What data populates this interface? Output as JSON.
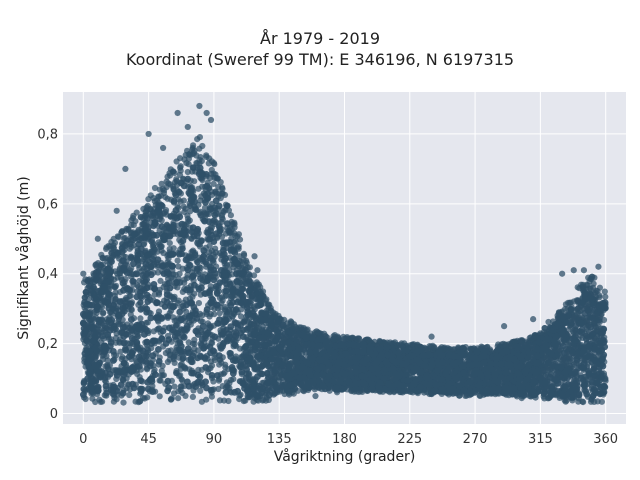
{
  "chart_data": {
    "type": "scatter",
    "title_line1": "År 1979 - 2019",
    "title_line2": "Koordinat (Sweref 99 TM): E 346196, N 6197315",
    "xlabel": "Vågriktning (grader)",
    "ylabel": "Signifikant våghöjd (m)",
    "xlim": [
      -14,
      374
    ],
    "ylim": [
      -0.03,
      0.92
    ],
    "x_ticks": [
      0,
      45,
      90,
      135,
      180,
      225,
      270,
      315,
      360
    ],
    "y_ticks": [
      0,
      0.2,
      0.4,
      0.6,
      0.8
    ],
    "y_tick_labels": [
      "0",
      "0,2",
      "0,4",
      "0,6",
      "0,8"
    ],
    "grid": true,
    "marker_color": "#2f5068",
    "plot_background": "#e5e7ee",
    "envelope": {
      "description_of_data": "Dense cloud of points; per-direction minimum and maximum significant wave height",
      "direction_deg": [
        0,
        10,
        20,
        30,
        40,
        50,
        60,
        70,
        80,
        90,
        100,
        110,
        120,
        130,
        140,
        150,
        165,
        180,
        200,
        225,
        250,
        270,
        290,
        310,
        320,
        330,
        340,
        350,
        360
      ],
      "hs_min_m": [
        0.03,
        0.03,
        0.03,
        0.03,
        0.03,
        0.03,
        0.03,
        0.03,
        0.03,
        0.03,
        0.03,
        0.03,
        0.03,
        0.04,
        0.05,
        0.06,
        0.06,
        0.06,
        0.06,
        0.06,
        0.05,
        0.05,
        0.05,
        0.04,
        0.04,
        0.03,
        0.03,
        0.03,
        0.03
      ],
      "hs_max_m": [
        0.38,
        0.44,
        0.5,
        0.55,
        0.6,
        0.65,
        0.7,
        0.75,
        0.8,
        0.72,
        0.6,
        0.48,
        0.38,
        0.3,
        0.27,
        0.25,
        0.23,
        0.22,
        0.21,
        0.2,
        0.19,
        0.19,
        0.2,
        0.22,
        0.26,
        0.3,
        0.36,
        0.4,
        0.35
      ]
    },
    "outliers": [
      {
        "x": 65,
        "y": 0.86
      },
      {
        "x": 80,
        "y": 0.88
      },
      {
        "x": 85,
        "y": 0.86
      },
      {
        "x": 88,
        "y": 0.84
      },
      {
        "x": 72,
        "y": 0.82
      },
      {
        "x": 45,
        "y": 0.8
      },
      {
        "x": 55,
        "y": 0.76
      },
      {
        "x": 29,
        "y": 0.7
      },
      {
        "x": 23,
        "y": 0.58
      },
      {
        "x": 10,
        "y": 0.5
      },
      {
        "x": 240,
        "y": 0.22
      },
      {
        "x": 290,
        "y": 0.25
      },
      {
        "x": 310,
        "y": 0.27
      },
      {
        "x": 330,
        "y": 0.4
      },
      {
        "x": 338,
        "y": 0.41
      },
      {
        "x": 345,
        "y": 0.41
      },
      {
        "x": 355,
        "y": 0.42
      },
      {
        "x": 120,
        "y": 0.41
      },
      {
        "x": 118,
        "y": 0.45
      },
      {
        "x": 0,
        "y": 0.4
      },
      {
        "x": 160,
        "y": 0.05
      },
      {
        "x": 200,
        "y": 0.1
      }
    ]
  }
}
